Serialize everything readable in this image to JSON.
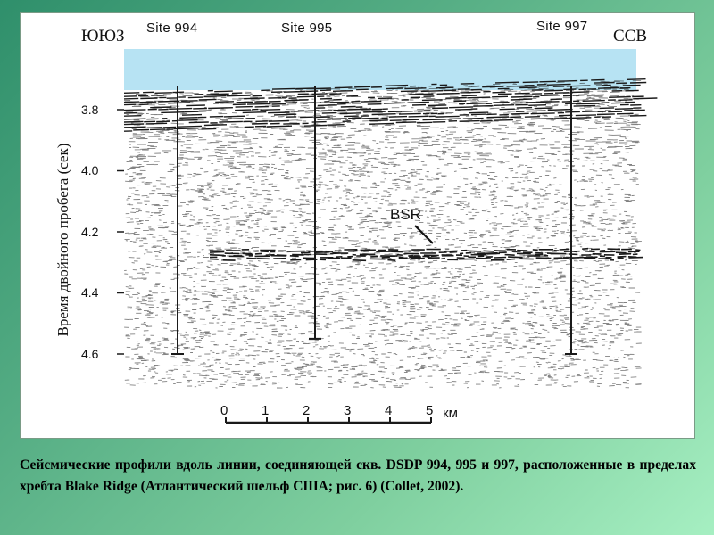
{
  "figure": {
    "direction_left": "ЮЮЗ",
    "direction_right": "ССВ",
    "sites": [
      {
        "label": "Site 994",
        "depth_bottom": 4.6
      },
      {
        "label": "Site 995",
        "depth_bottom": 4.55
      },
      {
        "label": "Site 997",
        "depth_bottom": 4.6
      }
    ],
    "y_axis_title": "Время двойного пробега (сек)",
    "y_ticks": [
      "3.8",
      "4.0",
      "4.2",
      "4.4",
      "4.6"
    ],
    "annotation": "BSR",
    "scale_bar": {
      "ticks": [
        "0",
        "1",
        "2",
        "3",
        "4",
        "5"
      ],
      "unit": "км"
    },
    "colors": {
      "water": "#b7e3f3",
      "ink": "#1a1a1a"
    }
  },
  "caption": "Сейсмические профили вдоль линии, соединяющей скв. DSDP 994, 995 и 997, расположенные в пределах хребта Blake Ridge (Атлантический шельф США; рис. 6) (Collet, 2002)."
}
